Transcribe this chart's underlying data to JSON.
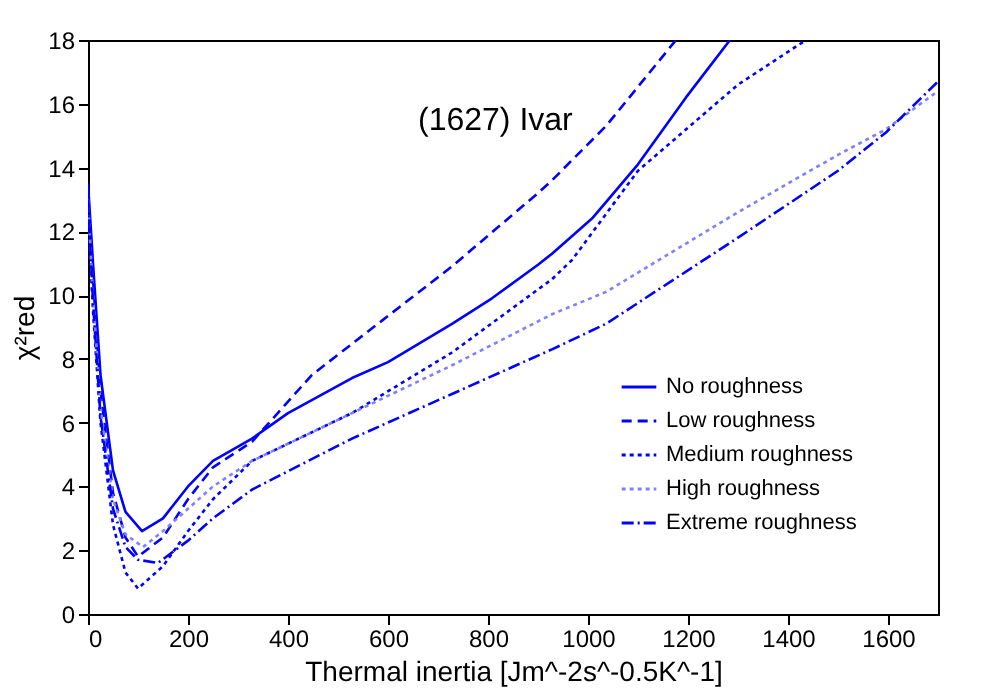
{
  "chart_data": {
    "type": "line",
    "xlabel": "Thermal inertia [Jm^-2s^-0.5K^-1]",
    "ylabel": "χ²red",
    "annotations": [
      "(1627) Ivar"
    ],
    "xlim": [
      0,
      1700
    ],
    "xticks": [
      0,
      200,
      400,
      600,
      800,
      1000,
      1200,
      1400,
      1600
    ],
    "ylim": [
      0,
      18
    ],
    "yticks": [
      0,
      2,
      4,
      6,
      8,
      10,
      12,
      14,
      16,
      18
    ],
    "grid": false,
    "legend": "bottom right",
    "marker": "none",
    "series": [
      {
        "name": "No roughness",
        "color": "#0000ff",
        "line_style": "solid",
        "x": [
          0,
          10,
          25,
          50,
          75,
          108,
          150,
          200,
          250,
          328,
          400,
          528,
          600,
          728,
          808,
          900,
          928,
          1008,
          1100,
          1196,
          1284
        ],
        "values": [
          13.5,
          11,
          7.5,
          4.5,
          3.2,
          2.6,
          3.0,
          4.0,
          4.8,
          5.5,
          6.3,
          7.4,
          7.9,
          9.1,
          9.9,
          10.95,
          11.3,
          12.4,
          14.1,
          16.2,
          18
        ]
      },
      {
        "name": "Low roughness",
        "color": "#0000ff",
        "line_style": "dashed",
        "x": [
          0,
          10,
          25,
          50,
          75,
          100,
          150,
          200,
          250,
          328,
          448,
          588,
          728,
          900,
          928,
          1036,
          1176
        ],
        "values": [
          13,
          10.5,
          7,
          3.8,
          2.4,
          1.8,
          2.4,
          3.6,
          4.6,
          5.4,
          7.5,
          9.2,
          10.9,
          13.2,
          13.6,
          15.3,
          18
        ]
      },
      {
        "name": "Medium roughness",
        "color": "#0000ff",
        "line_style": "dotted",
        "x": [
          0,
          10,
          25,
          50,
          75,
          100,
          150,
          200,
          250,
          328,
          528,
          728,
          928,
          968,
          1100,
          1300,
          1436
        ],
        "values": [
          12.5,
          9.5,
          6,
          2.8,
          1.3,
          0.8,
          1.5,
          2.6,
          3.6,
          4.8,
          6.3,
          8.2,
          10.5,
          11.1,
          13.9,
          16.6,
          18
        ]
      },
      {
        "name": "High roughness",
        "color": "#8080ff",
        "line_style": "dotted",
        "x": [
          0,
          10,
          25,
          50,
          75,
          110,
          150,
          200,
          250,
          328,
          528,
          728,
          928,
          1036,
          1300,
          1500,
          1596,
          1700
        ],
        "values": [
          13,
          10,
          6.5,
          3.6,
          2.5,
          2.1,
          2.6,
          3.3,
          4.0,
          4.8,
          6.3,
          7.8,
          9.4,
          10.1,
          12.6,
          14.4,
          15.2,
          16.4
        ]
      },
      {
        "name": "Extreme roughness",
        "color": "#0000ff",
        "line_style": "dashdot",
        "x": [
          0,
          10,
          25,
          50,
          75,
          100,
          140,
          200,
          250,
          328,
          528,
          728,
          928,
          1036,
          1300,
          1500,
          1596,
          1700
        ],
        "values": [
          13,
          9.8,
          6.2,
          3.3,
          2.1,
          1.7,
          1.6,
          2.3,
          3.0,
          3.9,
          5.5,
          6.9,
          8.3,
          9.1,
          11.8,
          13.9,
          15.1,
          16.7
        ]
      }
    ]
  }
}
